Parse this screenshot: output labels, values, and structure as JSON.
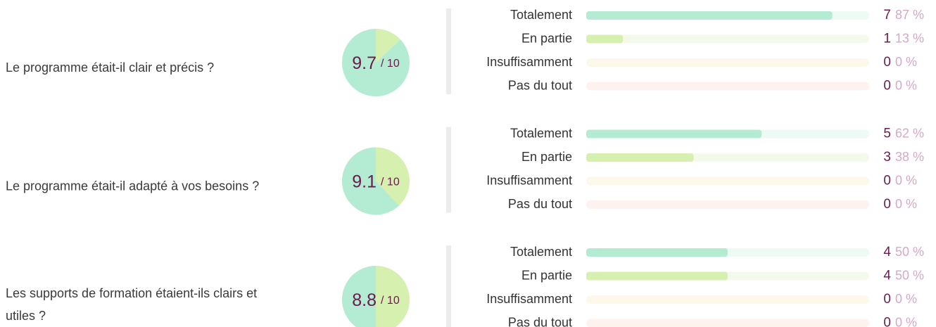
{
  "questions": [
    {
      "label": [
        "Le programme était-il clair et précis ?"
      ],
      "score": 9.7,
      "score_max": "/ 10",
      "answers": [
        {
          "label": "Totalement",
          "count": 7,
          "percent": 87,
          "percent_label": "87 %"
        },
        {
          "label": "En partie",
          "count": 1,
          "percent": 13,
          "percent_label": "13 %"
        },
        {
          "label": "Insuffisamment",
          "count": 0,
          "percent": 0,
          "percent_label": "0 %"
        },
        {
          "label": "Pas du tout",
          "count": 0,
          "percent": 0,
          "percent_label": "0 %"
        }
      ]
    },
    {
      "label": [
        "Le programme était-il adapté à vos besoins ?"
      ],
      "score": 9.1,
      "score_max": "/ 10",
      "answers": [
        {
          "label": "Totalement",
          "count": 5,
          "percent": 62,
          "percent_label": "62 %"
        },
        {
          "label": "En partie",
          "count": 3,
          "percent": 38,
          "percent_label": "38 %"
        },
        {
          "label": "Insuffisamment",
          "count": 0,
          "percent": 0,
          "percent_label": "0 %"
        },
        {
          "label": "Pas du tout",
          "count": 0,
          "percent": 0,
          "percent_label": "0 %"
        }
      ]
    },
    {
      "label": [
        "Les supports de formation étaient-ils clairs et",
        "utiles ?"
      ],
      "score": 8.8,
      "score_max": "/ 10",
      "answers": [
        {
          "label": "Totalement",
          "count": 4,
          "percent": 50,
          "percent_label": "50 %"
        },
        {
          "label": "En partie",
          "count": 4,
          "percent": 50,
          "percent_label": "50 %"
        },
        {
          "label": "Insuffisamment",
          "count": 0,
          "percent": 0,
          "percent_label": "0 %"
        },
        {
          "label": "Pas du tout",
          "count": 0,
          "percent": 0,
          "percent_label": "0 %"
        }
      ]
    }
  ]
}
